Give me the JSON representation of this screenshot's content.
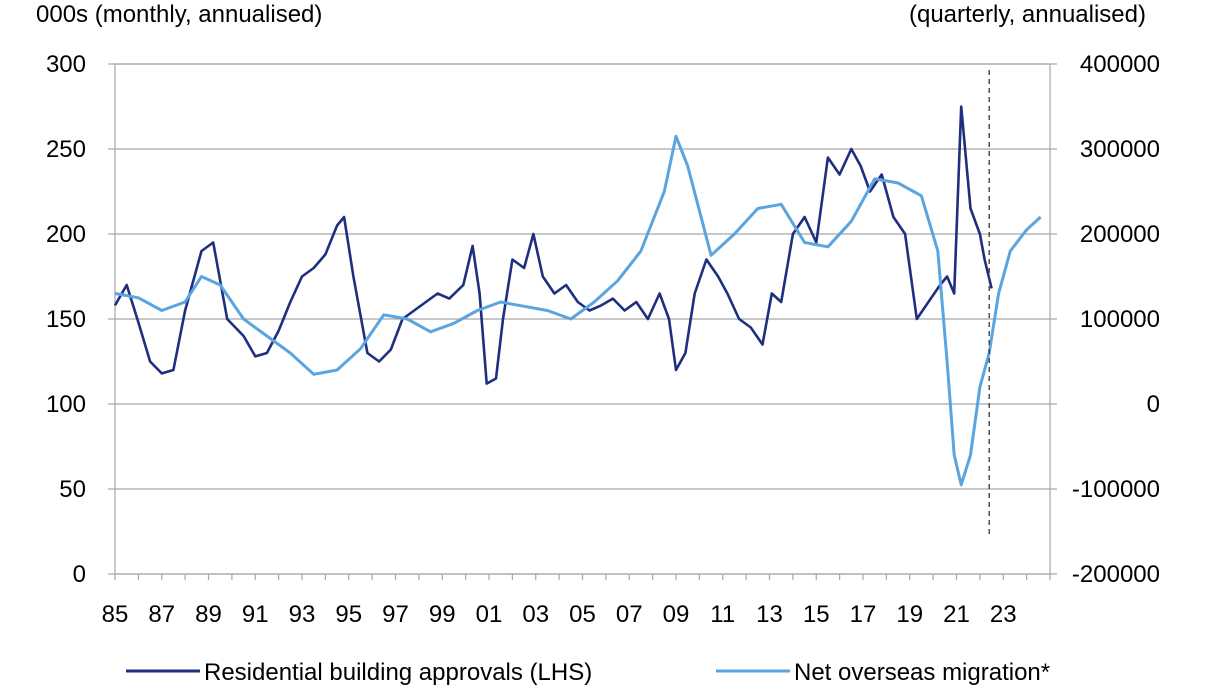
{
  "chart_data": {
    "type": "line",
    "left_axis_label": "000s (monthly, annualised)",
    "right_axis_label": "(quarterly, annualised)",
    "left_ylim": [
      0,
      300
    ],
    "left_ticks": [
      "0",
      "50",
      "100",
      "150",
      "200",
      "250",
      "300"
    ],
    "right_ylim": [
      -200000,
      400000
    ],
    "right_ticks": [
      "-200000",
      "-100000",
      "0",
      "100000",
      "200000",
      "300000",
      "400000"
    ],
    "xlim": [
      1985,
      2025
    ],
    "x_ticks": [
      "85",
      "87",
      "89",
      "91",
      "93",
      "95",
      "97",
      "99",
      "01",
      "03",
      "05",
      "07",
      "09",
      "11",
      "13",
      "15",
      "17",
      "19",
      "21",
      "23"
    ],
    "grid": true,
    "legend_position": "bottom",
    "vline_x": 2022.4,
    "colors": {
      "approvals": "#1f2f7f",
      "migration": "#5aa5e0",
      "grid": "#a6a6a6"
    },
    "series": [
      {
        "name": "Residential building approvals (LHS)",
        "axis": "left",
        "x": [
          1985,
          1985.5,
          1986,
          1986.5,
          1987,
          1987.5,
          1988,
          1988.7,
          1989.2,
          1989.8,
          1990.5,
          1991,
          1991.5,
          1992,
          1992.5,
          1993,
          1993.5,
          1994,
          1994.5,
          1994.8,
          1995.2,
          1995.8,
          1996.3,
          1996.8,
          1997.3,
          1997.8,
          1998.3,
          1998.8,
          1999.3,
          1999.9,
          2000.3,
          2000.6,
          2000.9,
          2001.3,
          2001.6,
          2002,
          2002.5,
          2002.9,
          2003.3,
          2003.8,
          2004.3,
          2004.8,
          2005.3,
          2005.8,
          2006.3,
          2006.8,
          2007.3,
          2007.8,
          2008.3,
          2008.7,
          2009,
          2009.4,
          2009.8,
          2010.3,
          2010.8,
          2011.2,
          2011.7,
          2012.2,
          2012.7,
          2013.1,
          2013.5,
          2014,
          2014.5,
          2015,
          2015.5,
          2016,
          2016.5,
          2016.9,
          2017.3,
          2017.8,
          2018.3,
          2018.8,
          2019.3,
          2019.8,
          2020.3,
          2020.6,
          2020.9,
          2021.2,
          2021.6,
          2022,
          2022.2,
          2022.5
        ],
        "values": [
          158,
          170,
          148,
          125,
          118,
          120,
          155,
          190,
          195,
          150,
          140,
          128,
          130,
          143,
          160,
          175,
          180,
          188,
          205,
          210,
          175,
          130,
          125,
          132,
          150,
          155,
          160,
          165,
          162,
          170,
          193,
          165,
          112,
          115,
          150,
          185,
          180,
          200,
          175,
          165,
          170,
          160,
          155,
          158,
          162,
          155,
          160,
          150,
          165,
          150,
          120,
          130,
          165,
          185,
          175,
          165,
          150,
          145,
          135,
          165,
          160,
          200,
          210,
          195,
          245,
          235,
          250,
          240,
          225,
          235,
          210,
          200,
          150,
          160,
          170,
          175,
          165,
          275,
          215,
          200,
          185,
          168
        ]
      },
      {
        "name": "Net overseas migration*",
        "axis": "right",
        "x": [
          1985,
          1986,
          1987,
          1988,
          1988.7,
          1989.5,
          1990.5,
          1991.5,
          1992.5,
          1993.5,
          1994.5,
          1995.5,
          1996.5,
          1997.5,
          1998.5,
          1999.5,
          2000.5,
          2001.5,
          2002.5,
          2003.5,
          2004.5,
          2005.5,
          2006.5,
          2007.5,
          2008.5,
          2009,
          2009.5,
          2010.5,
          2011.5,
          2012.5,
          2013.5,
          2014.5,
          2015.5,
          2016.5,
          2017.5,
          2018.5,
          2019.5,
          2020.2,
          2020.6,
          2020.9,
          2021.2,
          2021.6,
          2022,
          2022.4,
          2022.8,
          2023.3,
          2024,
          2024.6
        ],
        "values": [
          130000,
          125000,
          110000,
          120000,
          150000,
          140000,
          100000,
          80000,
          60000,
          35000,
          40000,
          65000,
          105000,
          100000,
          85000,
          95000,
          110000,
          120000,
          115000,
          110000,
          100000,
          120000,
          145000,
          180000,
          250000,
          315000,
          280000,
          175000,
          200000,
          230000,
          235000,
          190000,
          185000,
          215000,
          265000,
          260000,
          245000,
          180000,
          50000,
          -60000,
          -95000,
          -60000,
          20000,
          60000,
          130000,
          180000,
          205000,
          220000
        ]
      }
    ]
  }
}
